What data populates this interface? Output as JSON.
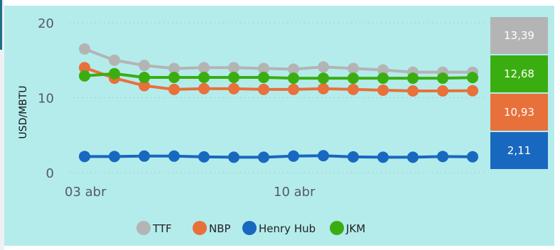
{
  "chart_data": {
    "type": "line",
    "ylabel": "USD/MBTU",
    "ylim": [
      0,
      20
    ],
    "yticks": [
      "0",
      "10",
      "20"
    ],
    "grid": "horizontal dotted",
    "legend_position": "bottom",
    "x_tick_labels": [
      {
        "index": 0,
        "label": "03 abr"
      },
      {
        "index": 7,
        "label": "10 abr"
      }
    ],
    "x": [
      "03 abr",
      "04 abr",
      "05 abr",
      "06 abr",
      "07 abr",
      "08 abr",
      "09 abr",
      "10 abr",
      "11 abr",
      "12 abr",
      "13 abr",
      "14 abr",
      "15 abr",
      "16 abr"
    ],
    "series": [
      {
        "name": "TTF",
        "color": "#b4b4b4",
        "values": [
          16.5,
          15.0,
          14.3,
          13.9,
          14.0,
          14.0,
          13.9,
          13.8,
          14.1,
          13.9,
          13.7,
          13.4,
          13.4,
          13.39
        ]
      },
      {
        "name": "NBP",
        "color": "#e8703a",
        "values": [
          14.0,
          12.6,
          11.6,
          11.1,
          11.2,
          11.2,
          11.1,
          11.1,
          11.2,
          11.1,
          11.0,
          10.9,
          10.9,
          10.93
        ]
      },
      {
        "name": "Henry Hub",
        "color": "#1868c0",
        "values": [
          2.15,
          2.15,
          2.2,
          2.2,
          2.1,
          2.05,
          2.05,
          2.2,
          2.25,
          2.1,
          2.05,
          2.05,
          2.15,
          2.11
        ]
      },
      {
        "name": "JKM",
        "color": "#3aae10",
        "values": [
          12.9,
          13.2,
          12.7,
          12.7,
          12.7,
          12.7,
          12.7,
          12.6,
          12.6,
          12.6,
          12.6,
          12.6,
          12.6,
          12.68
        ]
      }
    ],
    "last_value_boxes": [
      {
        "series": "TTF",
        "label": "13,39",
        "color": "#b4b4b4"
      },
      {
        "series": "JKM",
        "label": "12,68",
        "color": "#3aae10"
      },
      {
        "series": "NBP",
        "label": "10,93",
        "color": "#e8703a"
      },
      {
        "series": "Henry Hub",
        "label": "2,11",
        "color": "#1868c0"
      }
    ]
  }
}
